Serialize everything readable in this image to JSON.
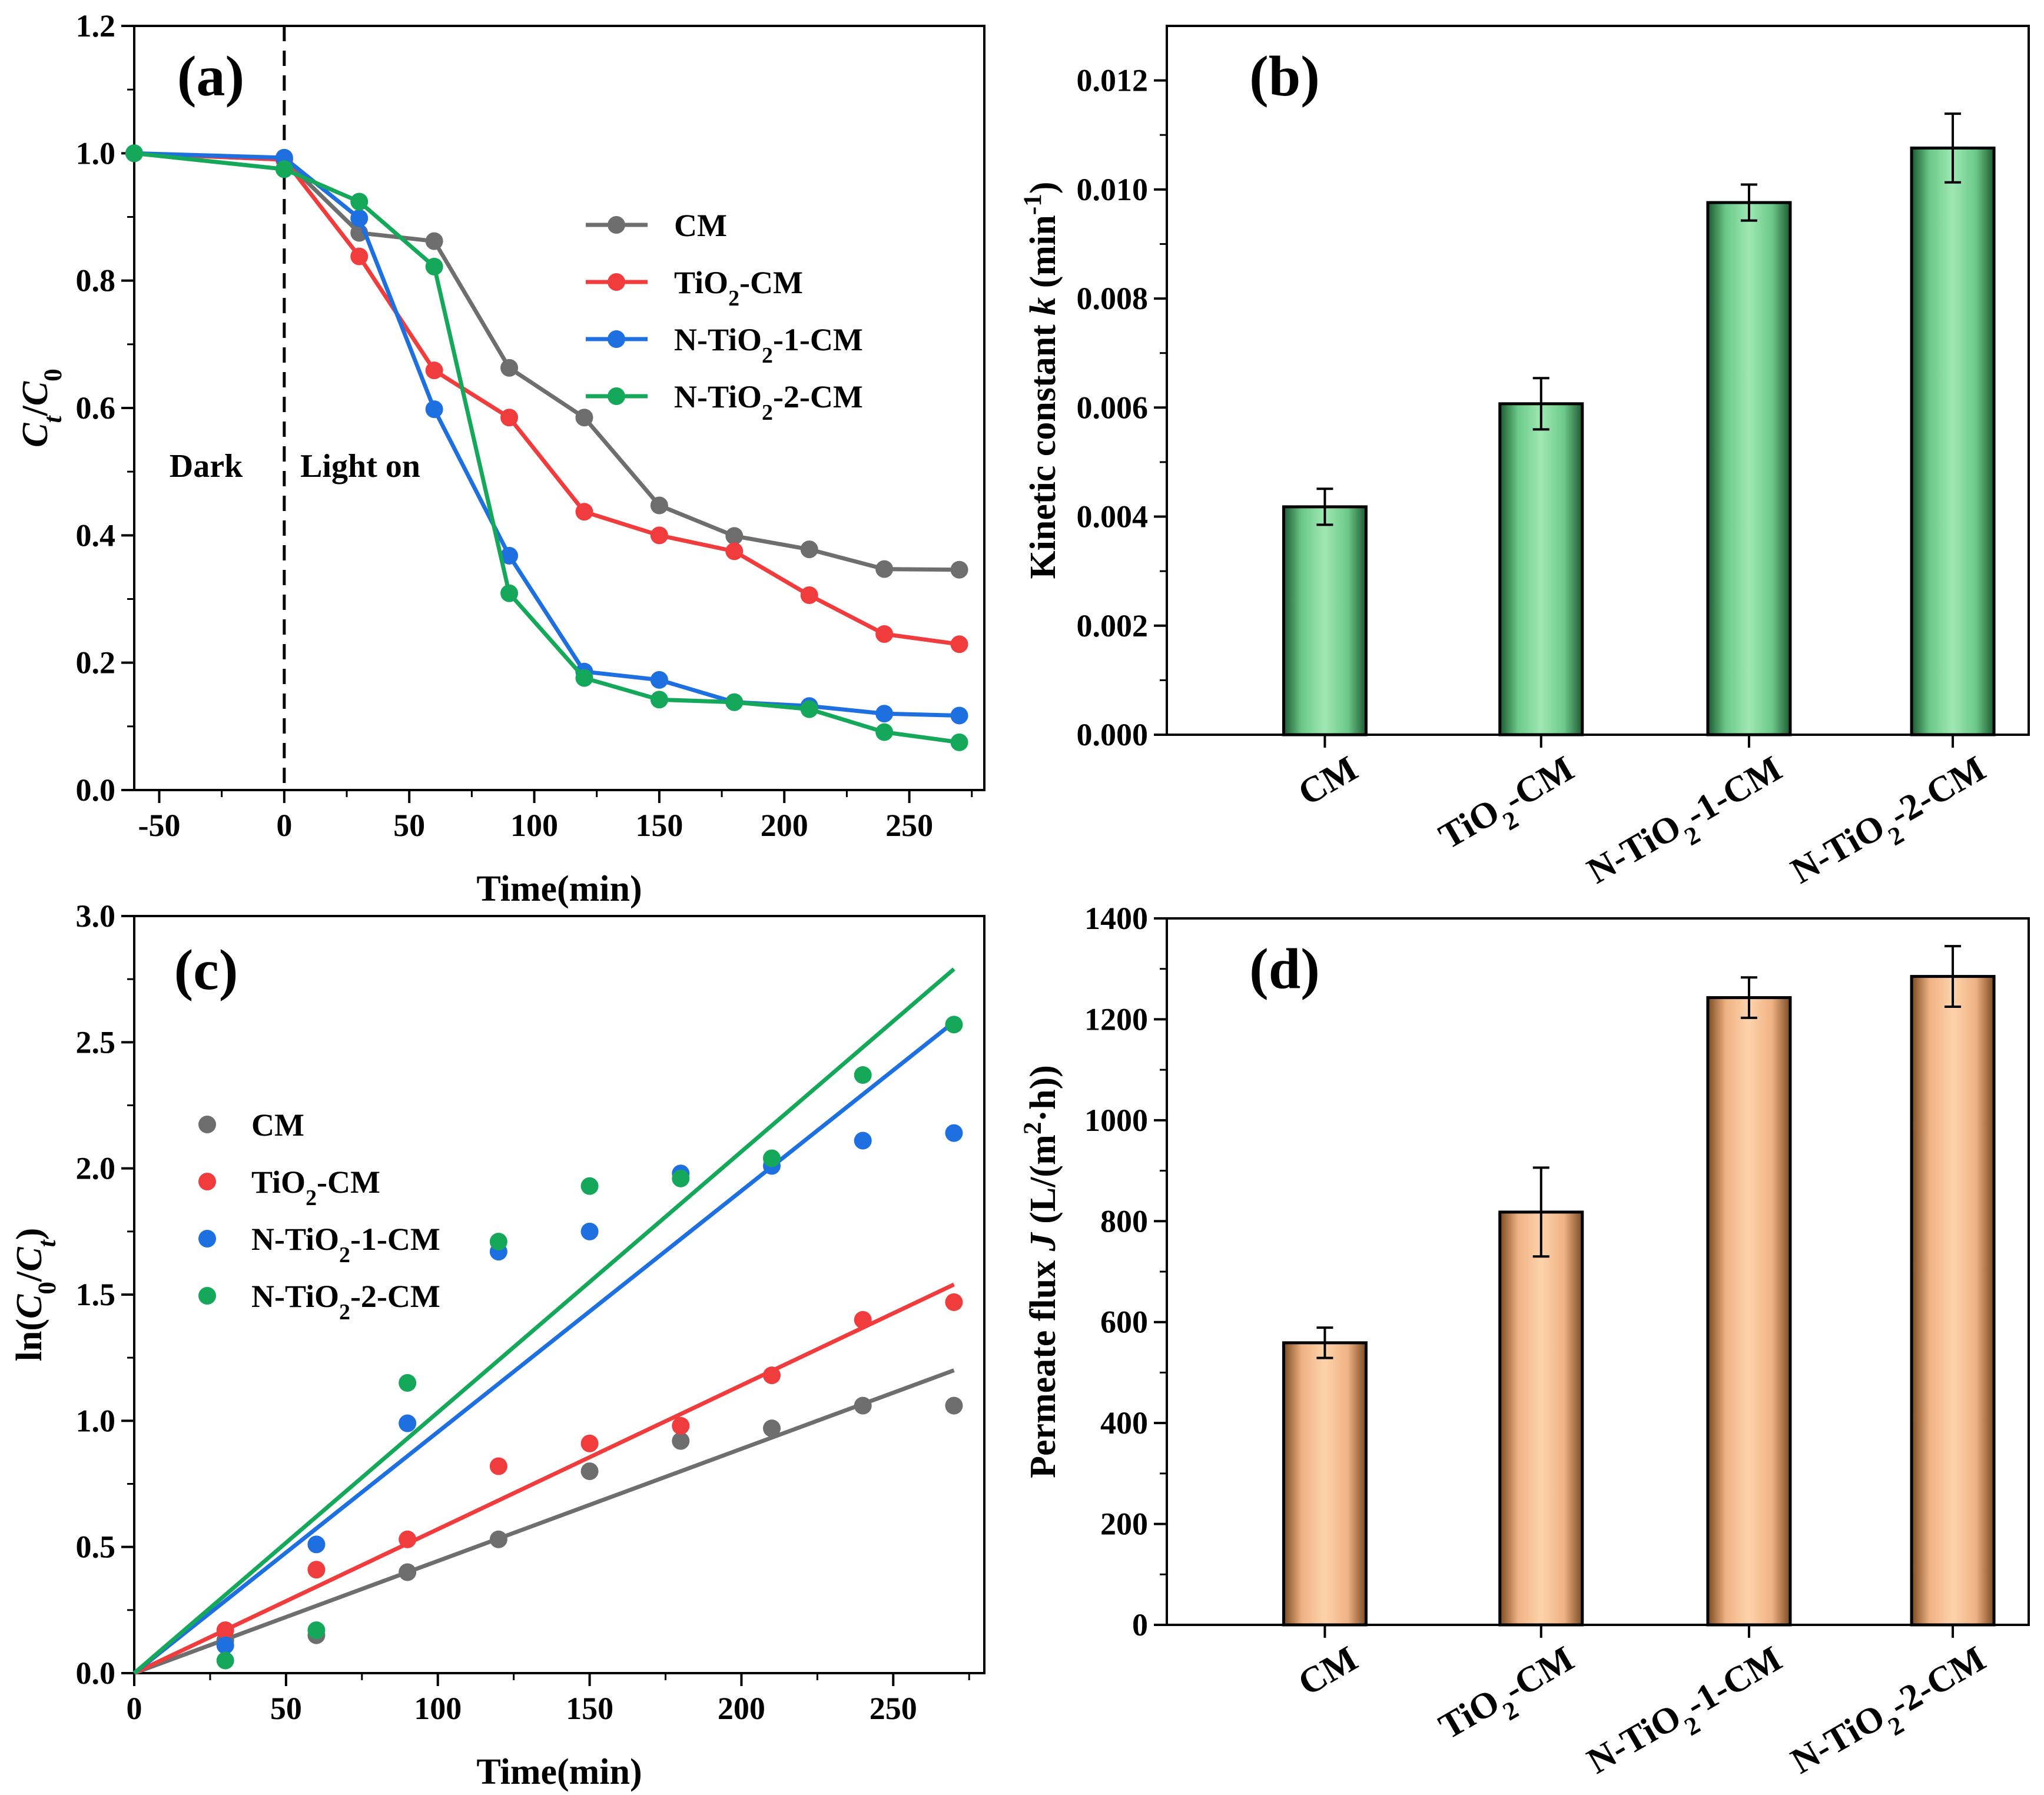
{
  "figure": {
    "colors": {
      "CM": "#6e6e6e",
      "TiO2-CM": "#f03c3c",
      "N-TiO2-1-CM": "#1e6fe0",
      "N-TiO2-2-CM": "#16a85a",
      "green_bar": "#8ed8a0",
      "orange_bar": "#f7c49a"
    }
  },
  "chart_data": [
    {
      "panel": "(a)",
      "type": "line",
      "xlabel": "Time(min)",
      "ylabel": "Ct/C0",
      "xlim": [
        -60,
        280
      ],
      "ylim": [
        0.0,
        1.2
      ],
      "xticks": [
        -50,
        0,
        50,
        100,
        150,
        200,
        250
      ],
      "yticks": [
        0.0,
        0.2,
        0.4,
        0.6,
        0.8,
        1.0,
        1.2
      ],
      "annotations": [
        "Dark",
        "Light on"
      ],
      "vline_x": 0,
      "x": [
        -60,
        0,
        30,
        60,
        90,
        120,
        150,
        180,
        210,
        240,
        270
      ],
      "series": [
        {
          "name": "CM",
          "key": "CM",
          "values": [
            1.0,
            0.99,
            0.875,
            0.862,
            0.663,
            0.585,
            0.447,
            0.399,
            0.378,
            0.347,
            0.346
          ]
        },
        {
          "name": "TiO2-CM",
          "key": "TiO2-CM",
          "values": [
            1.0,
            0.99,
            0.838,
            0.659,
            0.585,
            0.437,
            0.4,
            0.375,
            0.306,
            0.245,
            0.229
          ]
        },
        {
          "name": "N-TiO2-1-CM",
          "key": "N-TiO2-1-CM",
          "values": [
            1.0,
            0.993,
            0.898,
            0.598,
            0.368,
            0.186,
            0.173,
            0.138,
            0.132,
            0.12,
            0.117
          ]
        },
        {
          "name": "N-TiO2-2-CM",
          "key": "N-TiO2-2-CM",
          "values": [
            1.0,
            0.975,
            0.924,
            0.822,
            0.309,
            0.176,
            0.142,
            0.138,
            0.127,
            0.091,
            0.075
          ]
        }
      ]
    },
    {
      "panel": "(b)",
      "type": "bar",
      "ylabel": "Kinetic constant k (min-1)",
      "ylim": [
        0.0,
        0.013
      ],
      "yticks": [
        0.0,
        0.002,
        0.004,
        0.006,
        0.008,
        0.01,
        0.012
      ],
      "ytick_labels": [
        "0.000",
        "0.002",
        "0.004",
        "0.006",
        "0.008",
        "0.010",
        "0.012"
      ],
      "categories": [
        "CM",
        "TiO2-CM",
        "N-TiO2-1-CM",
        "N-TiO2-2-CM"
      ],
      "values": [
        0.00418,
        0.00607,
        0.00976,
        0.01076
      ],
      "errors": [
        0.00033,
        0.00047,
        0.00033,
        0.00063
      ]
    },
    {
      "panel": "(c)",
      "type": "scatter",
      "xlabel": "Time(min)",
      "ylabel": "ln(C0/Ct)",
      "xlim": [
        0,
        280
      ],
      "ylim": [
        0.0,
        3.0
      ],
      "xticks": [
        0,
        50,
        100,
        150,
        200,
        250
      ],
      "yticks": [
        0.0,
        0.5,
        1.0,
        1.5,
        2.0,
        2.5,
        3.0
      ],
      "x": [
        30,
        60,
        90,
        120,
        150,
        180,
        210,
        240,
        270
      ],
      "series": [
        {
          "name": "CM",
          "key": "CM",
          "values": [
            0.13,
            0.15,
            0.4,
            0.53,
            0.8,
            0.92,
            0.97,
            1.06,
            1.06
          ],
          "fit_end": [
            270,
            1.2
          ]
        },
        {
          "name": "TiO2-CM",
          "key": "TiO2-CM",
          "values": [
            0.17,
            0.41,
            0.53,
            0.82,
            0.91,
            0.98,
            1.18,
            1.4,
            1.47
          ],
          "fit_end": [
            270,
            1.54
          ]
        },
        {
          "name": "N-TiO2-1-CM",
          "key": "N-TiO2-1-CM",
          "values": [
            0.11,
            0.51,
            0.99,
            1.67,
            1.75,
            1.98,
            2.01,
            2.11,
            2.14
          ],
          "fit_end": [
            270,
            2.58
          ]
        },
        {
          "name": "N-TiO2-2-CM",
          "key": "N-TiO2-2-CM",
          "values": [
            0.05,
            0.17,
            1.15,
            1.71,
            1.93,
            1.96,
            2.04,
            2.37,
            2.57
          ],
          "fit_end": [
            270,
            2.79
          ]
        }
      ]
    },
    {
      "panel": "(d)",
      "type": "bar",
      "ylabel": "Permeate flux J (L/(m2·h))",
      "ylim": [
        0,
        1400
      ],
      "yticks": [
        0,
        200,
        400,
        600,
        800,
        1000,
        1200,
        1400
      ],
      "categories": [
        "CM",
        "TiO2-CM",
        "N-TiO2-1-CM",
        "N-TiO2-2-CM"
      ],
      "values": [
        559,
        818,
        1243,
        1285
      ],
      "errors": [
        30,
        88,
        40,
        60
      ]
    }
  ]
}
